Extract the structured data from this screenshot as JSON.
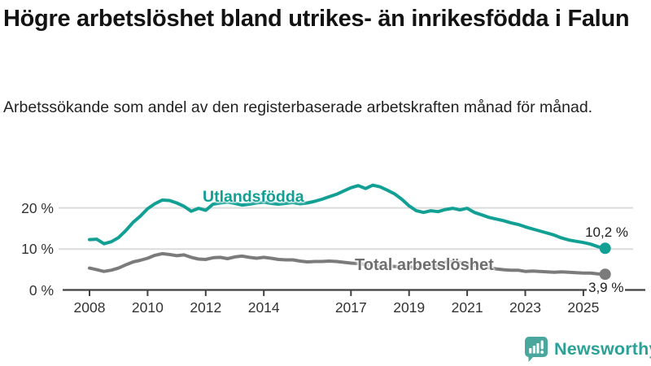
{
  "header": {
    "title": "Högre arbetslöshet bland utrikes- än inrikesfödda i Falun",
    "subtitle": "Arbetssökande som andel av den registerbaserade arbetskraften månad för månad."
  },
  "chart_data": {
    "type": "line",
    "title": "Högre arbetslöshet bland utrikes- än inrikesfödda i Falun",
    "xlabel": "",
    "ylabel": "",
    "x_unit": "year",
    "y_unit": "%",
    "xlim": [
      2007.2,
      2026.4
    ],
    "ylim": [
      0,
      27
    ],
    "grid": "horizontal",
    "legend_position": "inline-on-line",
    "x_ticks": [
      {
        "label": "2008",
        "value": 2008
      },
      {
        "label": "2010",
        "value": 2010
      },
      {
        "label": "2012",
        "value": 2012
      },
      {
        "label": "2014",
        "value": 2014
      },
      {
        "label": "2017",
        "value": 2017
      },
      {
        "label": "2019",
        "value": 2019
      },
      {
        "label": "2021",
        "value": 2021
      },
      {
        "label": "2023",
        "value": 2023
      },
      {
        "label": "2025",
        "value": 2025
      }
    ],
    "y_ticks": [
      {
        "label": "0 %",
        "value": 0
      },
      {
        "label": "10 %",
        "value": 10
      },
      {
        "label": "20 %",
        "value": 20
      }
    ],
    "x_start": 2008.0,
    "x_step": 0.25,
    "series": [
      {
        "name": "Utlandsfödda",
        "color": "#12a095",
        "end_label": "10,2 %",
        "end_value": 10.2,
        "values": [
          12.3,
          12.4,
          11.3,
          11.8,
          12.8,
          14.5,
          16.5,
          18.0,
          19.8,
          21.0,
          21.9,
          21.8,
          21.2,
          20.4,
          19.2,
          19.9,
          19.4,
          20.9,
          21.2,
          21.4,
          21.1,
          20.7,
          20.9,
          21.2,
          21.4,
          21.1,
          20.9,
          21.1,
          21.3,
          21.0,
          21.2,
          21.6,
          22.1,
          22.7,
          23.3,
          24.1,
          24.9,
          25.4,
          24.7,
          25.5,
          25.1,
          24.3,
          23.4,
          22.1,
          20.5,
          19.3,
          18.9,
          19.3,
          19.1,
          19.6,
          19.9,
          19.5,
          19.9,
          18.9,
          18.3,
          17.7,
          17.3,
          16.9,
          16.4,
          16.0,
          15.4,
          14.9,
          14.4,
          13.9,
          13.4,
          12.7,
          12.2,
          11.9,
          11.6,
          11.2,
          10.6,
          10.2
        ]
      },
      {
        "name": "Total arbetslöshet",
        "color": "#7b7b7b",
        "end_label": "3,9 %",
        "end_value": 3.9,
        "values": [
          5.4,
          5.0,
          4.6,
          4.9,
          5.4,
          6.2,
          6.9,
          7.3,
          7.8,
          8.5,
          8.9,
          8.7,
          8.4,
          8.6,
          8.0,
          7.6,
          7.5,
          7.9,
          8.0,
          7.7,
          8.1,
          8.3,
          8.0,
          7.8,
          8.0,
          7.8,
          7.5,
          7.4,
          7.4,
          7.1,
          6.9,
          7.0,
          7.0,
          7.1,
          7.0,
          6.8,
          6.6,
          6.5,
          6.3,
          6.2,
          6.0,
          5.9,
          5.8,
          5.7,
          5.7,
          5.6,
          5.7,
          5.8,
          6.0,
          6.8,
          7.0,
          6.7,
          6.5,
          6.1,
          5.8,
          5.5,
          5.2,
          5.0,
          4.9,
          4.9,
          4.6,
          4.7,
          4.6,
          4.5,
          4.4,
          4.5,
          4.4,
          4.3,
          4.2,
          4.2,
          4.0,
          3.9
        ]
      }
    ]
  },
  "footer": {
    "brand": "Newsworthy",
    "logo_icon": "bar-chart-speech-bubble-icon",
    "brand_text_color": "#2ca197",
    "brand_icon_color": "#4aa79e"
  },
  "style": {
    "grid_color": "#dcdcdc",
    "axis_color": "#414141",
    "label_color": "#333333"
  }
}
